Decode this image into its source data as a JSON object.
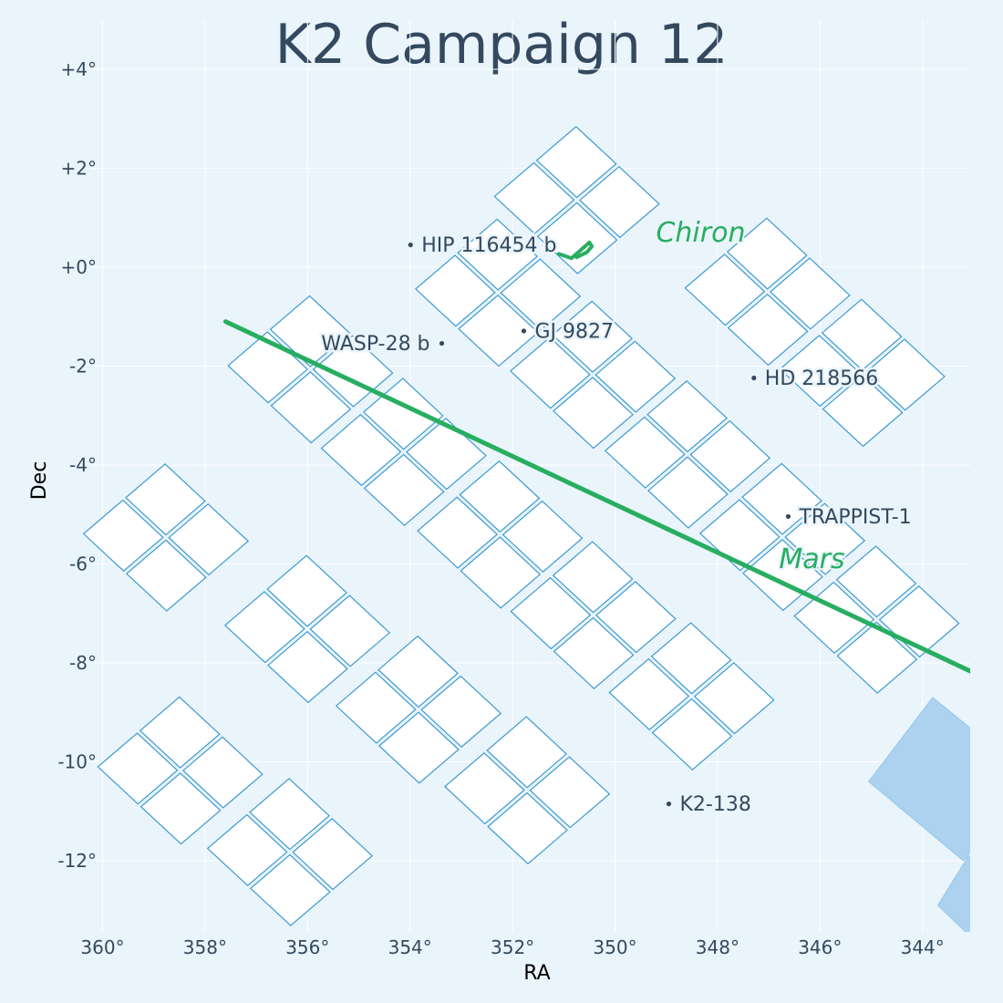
{
  "title": "K2 Campaign 12",
  "colors": {
    "background": "#eaf4fb",
    "ccd_fill": "#ffffff",
    "ccd_stroke": "#3a9ad4",
    "neighbor_field": "#a6cfee",
    "solar_system": "#27ae60",
    "text": "#34495e"
  },
  "chart_data": {
    "type": "map",
    "xlabel": "RA",
    "ylabel": "Dec",
    "x_reversed": true,
    "xlim": [
      360,
      343
    ],
    "ylim": [
      -13.3,
      4.4
    ],
    "x_ticks": [
      {
        "value": 360,
        "label": "360°"
      },
      {
        "value": 358,
        "label": "358°"
      },
      {
        "value": 356,
        "label": "356°"
      },
      {
        "value": 354,
        "label": "354°"
      },
      {
        "value": 352,
        "label": "352°"
      },
      {
        "value": 350,
        "label": "350°"
      },
      {
        "value": 348,
        "label": "348°"
      },
      {
        "value": 346,
        "label": "346°"
      },
      {
        "value": 344,
        "label": "344°"
      }
    ],
    "y_ticks": [
      {
        "value": 4,
        "label": "+4°"
      },
      {
        "value": 2,
        "label": "+2°"
      },
      {
        "value": 0,
        "label": "+0°"
      },
      {
        "value": -2,
        "label": "-2°"
      },
      {
        "value": -4,
        "label": "-4°"
      },
      {
        "value": -6,
        "label": "-6°"
      },
      {
        "value": -8,
        "label": "-8°"
      },
      {
        "value": -10,
        "label": "-10°"
      },
      {
        "value": -12,
        "label": "-12°"
      }
    ],
    "grid": true,
    "targets": [
      {
        "name": "HIP 116454 b",
        "ra": 353.99,
        "dec": 0.45,
        "label_side": "right"
      },
      {
        "name": "GJ 9827",
        "ra": 351.78,
        "dec": -1.29,
        "label_side": "right"
      },
      {
        "name": "WASP-28 b",
        "ra": 353.38,
        "dec": -1.54,
        "label_side": "left"
      },
      {
        "name": "HD 218566",
        "ra": 347.29,
        "dec": -2.24,
        "label_side": "right"
      },
      {
        "name": "TRAPPIST-1",
        "ra": 346.62,
        "dec": -5.04,
        "label_side": "right"
      },
      {
        "name": "K2-138",
        "ra": 348.95,
        "dec": -10.85,
        "label_side": "right"
      }
    ],
    "solar_system": [
      {
        "name": "Mars",
        "label_ra": 346.8,
        "label_dec": -5.9,
        "track": [
          [
            357.6,
            -1.1
          ],
          [
            343.0,
            -8.2
          ]
        ]
      },
      {
        "name": "Chiron",
        "label_ra": 349.2,
        "label_dec": 0.7,
        "track": [
          [
            350.75,
            0.2
          ],
          [
            350.55,
            0.3
          ],
          [
            350.45,
            0.42
          ],
          [
            350.5,
            0.5
          ],
          [
            350.85,
            0.18
          ],
          [
            351.1,
            0.27
          ]
        ]
      }
    ],
    "ccd_modules": [
      {
        "corners": [
          [
            349.14,
            1.28
          ],
          [
            350.76,
            2.84
          ],
          [
            352.35,
            1.43
          ],
          [
            350.73,
            -0.13
          ]
        ]
      },
      {
        "corners": [
          [
            345.42,
            -0.57
          ],
          [
            347.04,
            0.99
          ],
          [
            348.63,
            -0.42
          ],
          [
            347.01,
            -1.98
          ]
        ]
      },
      {
        "corners": [
          [
            343.57,
            -2.21
          ],
          [
            345.19,
            -0.65
          ],
          [
            346.78,
            -2.06
          ],
          [
            345.16,
            -3.62
          ]
        ]
      },
      {
        "corners": [
          [
            350.68,
            -0.59
          ],
          [
            352.3,
            0.97
          ],
          [
            353.89,
            -0.44
          ],
          [
            352.27,
            -2.0
          ]
        ]
      },
      {
        "corners": [
          [
            348.83,
            -2.25
          ],
          [
            350.45,
            -0.69
          ],
          [
            352.04,
            -2.1
          ],
          [
            350.42,
            -3.66
          ]
        ]
      },
      {
        "corners": [
          [
            346.98,
            -3.86
          ],
          [
            348.6,
            -2.3
          ],
          [
            350.19,
            -3.71
          ],
          [
            348.57,
            -5.27
          ]
        ]
      },
      {
        "corners": [
          [
            345.13,
            -5.53
          ],
          [
            346.75,
            -3.97
          ],
          [
            348.34,
            -5.38
          ],
          [
            346.72,
            -6.94
          ]
        ]
      },
      {
        "corners": [
          [
            343.29,
            -7.2
          ],
          [
            344.91,
            -5.64
          ],
          [
            346.5,
            -7.05
          ],
          [
            344.88,
            -8.61
          ]
        ]
      },
      {
        "corners": [
          [
            354.34,
            -2.14
          ],
          [
            355.96,
            -0.58
          ],
          [
            357.55,
            -1.99
          ],
          [
            355.93,
            -3.55
          ]
        ]
      },
      {
        "corners": [
          [
            352.52,
            -3.81
          ],
          [
            354.14,
            -2.25
          ],
          [
            355.73,
            -3.66
          ],
          [
            354.11,
            -5.22
          ]
        ]
      },
      {
        "corners": [
          [
            350.64,
            -5.48
          ],
          [
            352.26,
            -3.92
          ],
          [
            353.85,
            -5.33
          ],
          [
            352.23,
            -6.89
          ]
        ]
      },
      {
        "corners": [
          [
            348.82,
            -7.11
          ],
          [
            350.44,
            -5.55
          ],
          [
            352.03,
            -6.96
          ],
          [
            350.41,
            -8.52
          ]
        ]
      },
      {
        "corners": [
          [
            346.9,
            -8.75
          ],
          [
            348.52,
            -7.19
          ],
          [
            350.11,
            -8.6
          ],
          [
            348.49,
            -10.16
          ]
        ]
      },
      {
        "corners": [
          [
            357.16,
            -5.54
          ],
          [
            358.78,
            -3.98
          ],
          [
            360.37,
            -5.39
          ],
          [
            358.75,
            -6.95
          ]
        ]
      },
      {
        "corners": [
          [
            354.4,
            -7.39
          ],
          [
            356.02,
            -5.83
          ],
          [
            357.61,
            -7.24
          ],
          [
            355.99,
            -8.8
          ]
        ]
      },
      {
        "corners": [
          [
            352.23,
            -9.02
          ],
          [
            353.85,
            -7.46
          ],
          [
            355.44,
            -8.87
          ],
          [
            353.82,
            -10.43
          ]
        ]
      },
      {
        "corners": [
          [
            350.11,
            -10.65
          ],
          [
            351.73,
            -9.09
          ],
          [
            353.32,
            -10.5
          ],
          [
            351.7,
            -12.06
          ]
        ]
      },
      {
        "corners": [
          [
            356.88,
            -10.25
          ],
          [
            358.5,
            -8.69
          ],
          [
            360.09,
            -10.1
          ],
          [
            358.47,
            -11.66
          ]
        ]
      },
      {
        "corners": [
          [
            354.74,
            -11.9
          ],
          [
            356.36,
            -10.34
          ],
          [
            357.95,
            -11.75
          ],
          [
            356.33,
            -13.31
          ]
        ]
      }
    ],
    "neighbor_fields": [
      {
        "corners": [
          [
            341.9,
            -10.3
          ],
          [
            343.8,
            -8.7
          ],
          [
            345.05,
            -10.4
          ],
          [
            343.2,
            -12.0
          ]
        ]
      },
      {
        "corners": [
          [
            341.2,
            -13.4
          ],
          [
            343.1,
            -11.9
          ],
          [
            343.7,
            -12.9
          ],
          [
            342.3,
            -14.3
          ]
        ]
      }
    ]
  }
}
